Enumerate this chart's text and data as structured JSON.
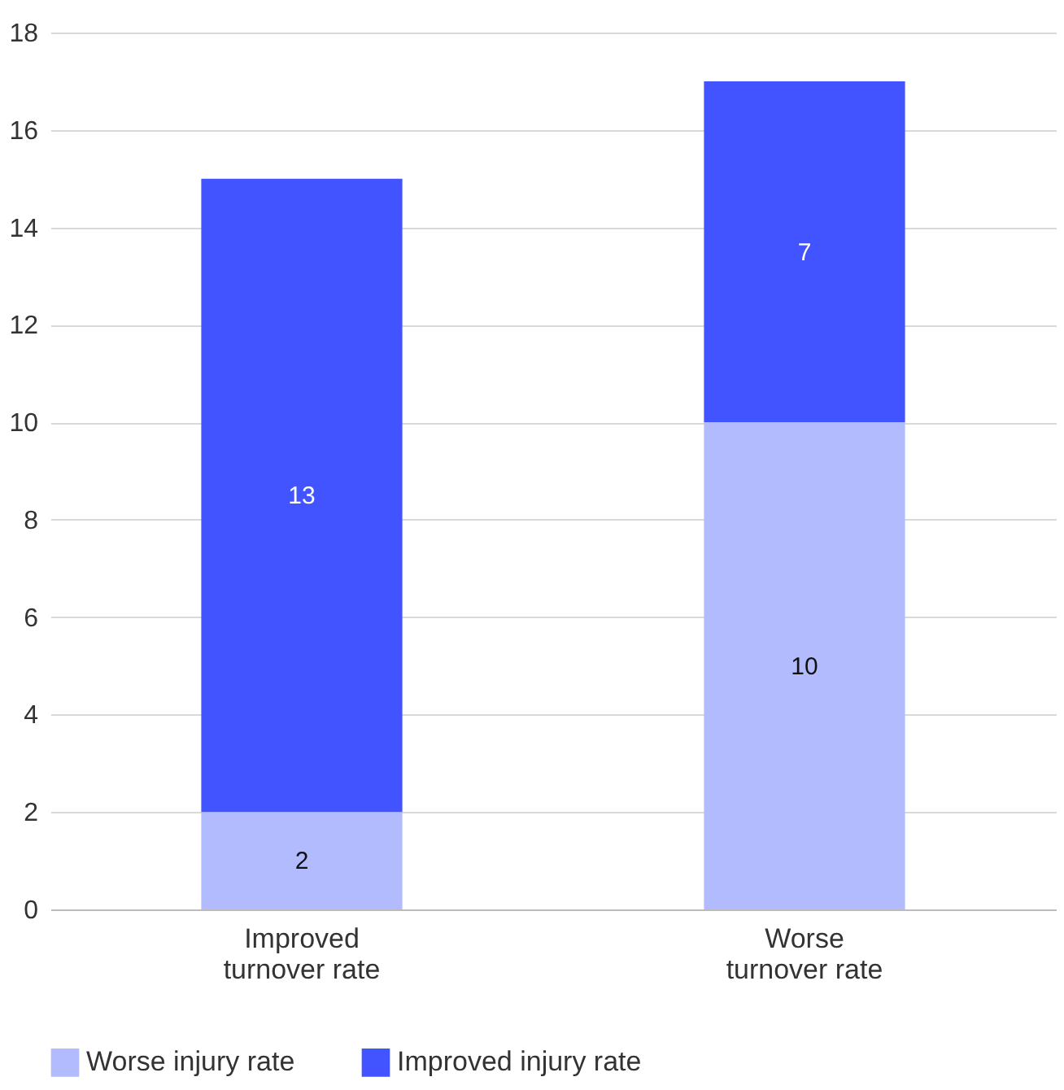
{
  "chart_data": {
    "type": "bar",
    "stacked": true,
    "categories": [
      "Improved turnover rate",
      "Worse turnover rate"
    ],
    "series": [
      {
        "name": "Worse injury rate",
        "color": "#b3bbff",
        "values": [
          2,
          10
        ]
      },
      {
        "name": "Improved injury rate",
        "color": "#4154ff",
        "values": [
          13,
          7
        ]
      }
    ],
    "ylim": [
      0,
      18
    ],
    "yticks": [
      0,
      2,
      4,
      6,
      8,
      10,
      12,
      14,
      16,
      18
    ],
    "grid": "y",
    "legend": "bottom",
    "data_labels": true
  }
}
